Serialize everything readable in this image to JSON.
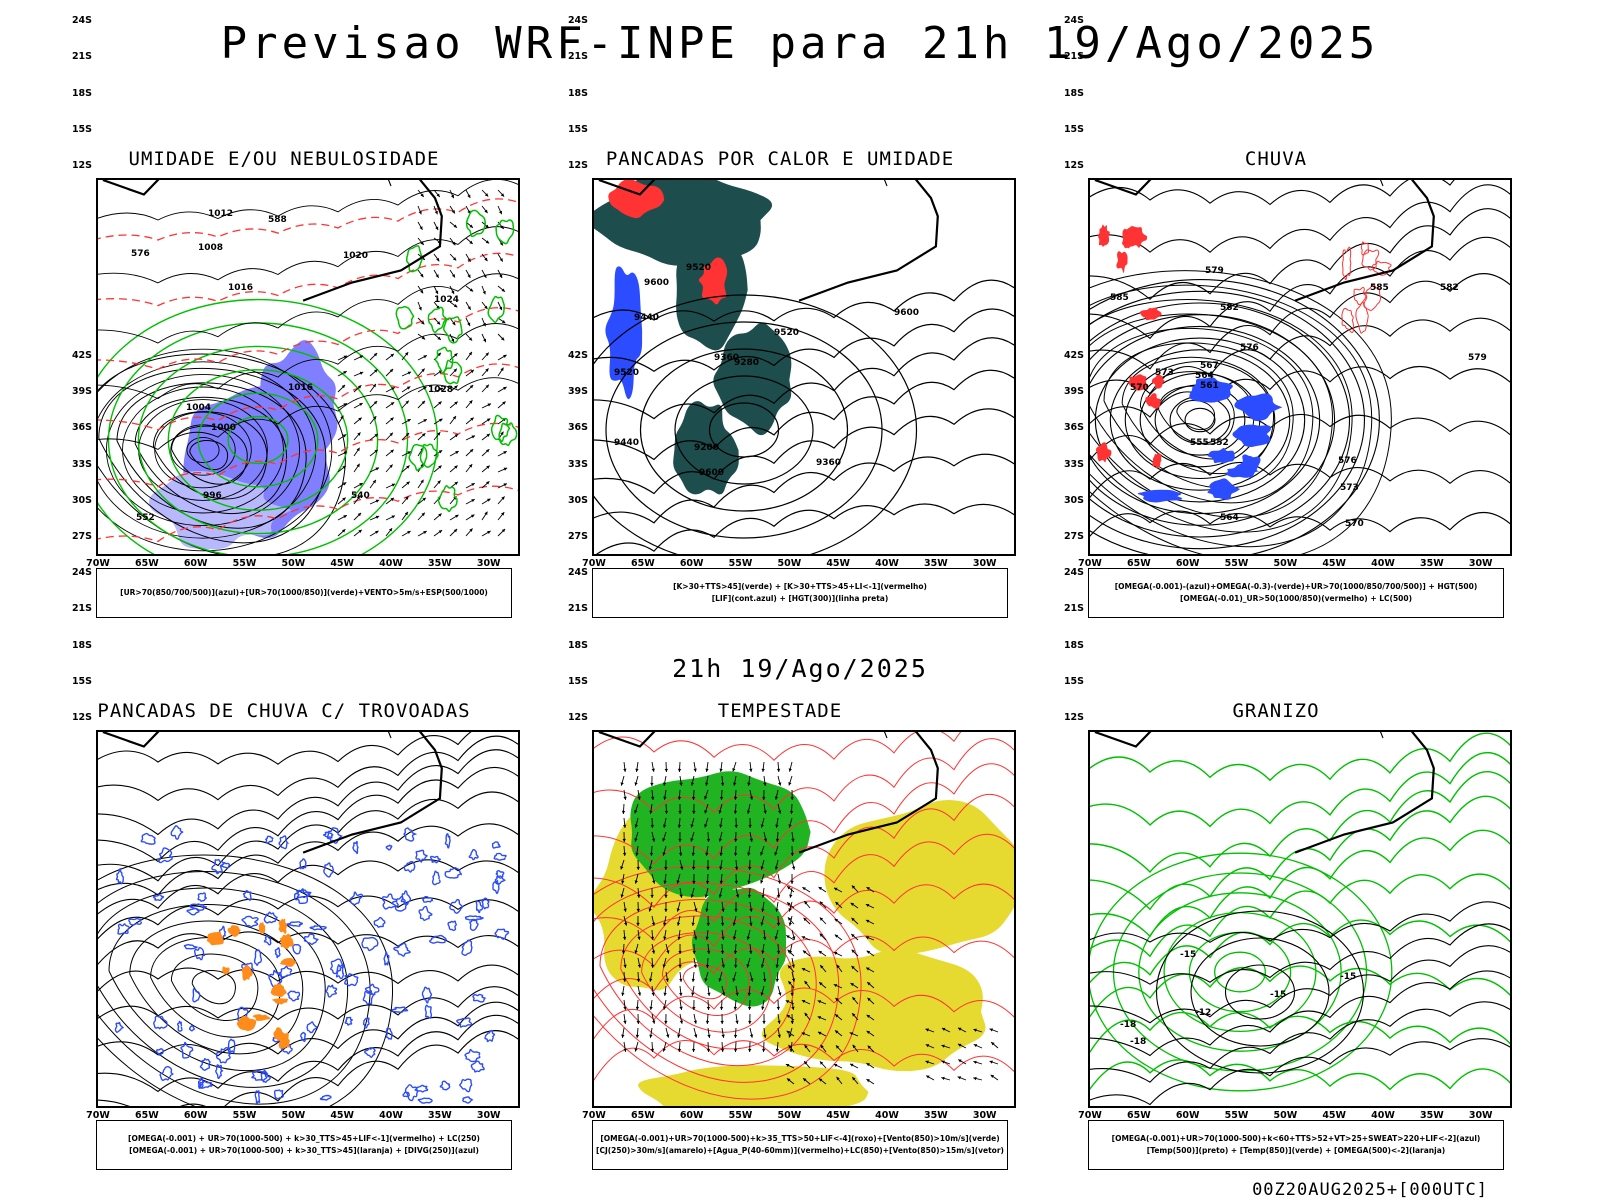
{
  "title": "Previsao WRF-INPE  para 21h 19/Ago/2025",
  "subtitle": "21h 19/Ago/2025",
  "footer": "00Z20AUG2025+[000UTC]",
  "lat_ticks": [
    "12S",
    "15S",
    "18S",
    "21S",
    "24S",
    "27S",
    "30S",
    "33S",
    "36S",
    "39S",
    "42S"
  ],
  "lon_ticks": [
    "70W",
    "65W",
    "60W",
    "55W",
    "50W",
    "45W",
    "40W",
    "35W",
    "30W"
  ],
  "colors": {
    "humidity_blue": "#7f7fff",
    "humidity_green": "#00c000",
    "red": "#ff3333",
    "dark_teal": "#1e4d4d",
    "omega_blue": "#2b4cff",
    "orange": "#ff8c1a",
    "yellow": "#e6d930",
    "green_fill": "#22b322"
  },
  "panels": [
    {
      "title": "UMIDADE E/OU NEBULOSIDADE",
      "legend": [
        "[UR>70(850/700/500)](azul)+[UR>70(1000/850)](verde)+VENTO>5m/s+ESP(500/1000)"
      ],
      "contour_labels": [
        "1012",
        "1016",
        "1008",
        "1004",
        "1000",
        "996",
        "1020",
        "1024",
        "1028",
        "1016",
        "588",
        "576",
        "552",
        "540"
      ]
    },
    {
      "title": "PANCADAS POR CALOR E UMIDADE",
      "legend": [
        "[K>30+TTS>45](verde) + [K>30+TTS>45+LI<-1](vermelho)",
        "[LIF](cont.azul) + [HGT(300)](linha preta)"
      ],
      "contour_labels": [
        "9600",
        "9520",
        "9440",
        "9360",
        "9280",
        "9200",
        "9600",
        "9520",
        "9440",
        "9360",
        "9520",
        "9600"
      ]
    },
    {
      "title": "CHUVA",
      "legend": [
        "[OMEGA(-0.001)-(azul)+OMEGA(-0.3)-(verde)+UR>70(1000/850/700/500)] + HGT(500)",
        "[OMEGA(-0.01)_UR>50(1000/850)(vermelho) + LC(500)"
      ],
      "contour_labels": [
        "585",
        "582",
        "579",
        "576",
        "573",
        "570",
        "567",
        "564",
        "561",
        "555",
        "552",
        "564",
        "585",
        "582",
        "579",
        "576",
        "573",
        "570"
      ]
    },
    {
      "title": "PANCADAS DE CHUVA C/ TROVOADAS",
      "legend": [
        "[OMEGA(-0.001) + UR>70(1000-500) + k>30_TTS>45+LIF<-1](vermelho) + LC(250)",
        "[OMEGA(-0.001) + UR>70(1000-500) + k>30_TTS>45](laranja) + [DIVG(250)](azul)"
      ],
      "contour_labels": []
    },
    {
      "title": "TEMPESTADE",
      "legend": [
        "[OMEGA(-0.001)+UR>70(1000-500)+k>35_TTS>50+LIF<-4](roxo)+[Vento(850)>10m/s](verde)",
        "[CJ(250)>30m/s](amarelo)+[Agua_P(40-60mm)](vermelho)+LC(850)+[Vento(850)>15m/s](vetor)"
      ],
      "contour_labels": []
    },
    {
      "title": "GRANIZO",
      "legend": [
        "[OMEGA(-0.001)+UR>70(1000-500)+k<60+TTS>52+VT>25+SWEAT>220+LIF<-2](azul)",
        "[Temp(500)](preto) + [Temp(850)](verde) + [OMEGA(500)<-2](laranja)"
      ],
      "contour_labels": [
        "-15",
        "-15",
        "-18",
        "-12",
        "-15",
        "-18"
      ]
    }
  ]
}
